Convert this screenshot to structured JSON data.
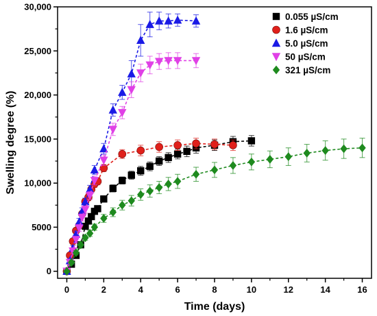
{
  "chart_data": {
    "type": "scatter",
    "title": "",
    "xlabel": "Time (days)",
    "ylabel": "Swelling degree (%)",
    "xlim": [
      -0.5,
      16.5
    ],
    "ylim": [
      -800,
      30000
    ],
    "x_ticks": [
      0,
      2,
      4,
      6,
      8,
      10,
      12,
      14,
      16
    ],
    "y_ticks": [
      0,
      5000,
      10000,
      15000,
      20000,
      25000,
      30000
    ],
    "y_tick_labels": [
      "0",
      "5000",
      "10,000",
      "15,000",
      "20,000",
      "25,000",
      "30,000"
    ],
    "grid": false,
    "legend_position": "top-right",
    "line_style": "dashed",
    "series": [
      {
        "name": "0.055 µS/cm",
        "marker": "square",
        "color": "#000000",
        "x": [
          0,
          0.25,
          0.5,
          0.75,
          1,
          1.17,
          1.33,
          1.5,
          1.67,
          2,
          2.5,
          3,
          3.5,
          4,
          4.5,
          5,
          5.5,
          6,
          6.5,
          7,
          8,
          9,
          10
        ],
        "y": [
          0,
          800,
          1800,
          3000,
          5100,
          5700,
          6200,
          6800,
          7100,
          8200,
          9400,
          10300,
          10900,
          11400,
          11900,
          12500,
          12900,
          13300,
          13600,
          14000,
          14300,
          14700,
          14800
        ],
        "error": [
          150,
          200,
          250,
          300,
          300,
          300,
          300,
          300,
          300,
          350,
          400,
          400,
          450,
          500,
          500,
          500,
          550,
          550,
          600,
          600,
          600,
          600,
          600
        ]
      },
      {
        "name": "1.6 µS/cm",
        "marker": "circle",
        "color": "#e0201b",
        "x": [
          0,
          0.17,
          0.33,
          0.5,
          0.67,
          0.83,
          1,
          1.17,
          1.33,
          1.5,
          1.67,
          2,
          3,
          4,
          5,
          6,
          7,
          8,
          9
        ],
        "y": [
          0,
          1800,
          3400,
          4600,
          5200,
          6500,
          7900,
          8400,
          9300,
          9900,
          10200,
          11700,
          13300,
          13700,
          14100,
          14300,
          14500,
          14400,
          14300
        ],
        "error": [
          150,
          250,
          300,
          300,
          300,
          350,
          350,
          400,
          400,
          400,
          400,
          400,
          500,
          600,
          600,
          600,
          600,
          600,
          600
        ]
      },
      {
        "name": "5.0 µS/cm",
        "marker": "triangle-up",
        "color": "#1a1ae6",
        "x": [
          0,
          0.17,
          0.33,
          0.5,
          0.67,
          0.83,
          1,
          1.25,
          1.5,
          2,
          2.5,
          3,
          3.5,
          4,
          4.5,
          5,
          5.5,
          6,
          7
        ],
        "y": [
          0,
          1200,
          2600,
          4200,
          5600,
          6800,
          7900,
          9300,
          11500,
          13900,
          18300,
          20300,
          22400,
          26200,
          28000,
          28400,
          28400,
          28500,
          28400
        ],
        "error": [
          150,
          250,
          300,
          350,
          400,
          400,
          400,
          450,
          500,
          600,
          700,
          800,
          1500,
          1800,
          1400,
          1000,
          800,
          700,
          700
        ]
      },
      {
        "name": "50 µS/cm",
        "marker": "triangle-down",
        "color": "#e040e6",
        "x": [
          0,
          0.17,
          0.33,
          0.5,
          0.67,
          0.83,
          1,
          1.25,
          1.5,
          2,
          2.5,
          3,
          3.5,
          4,
          4.5,
          5,
          5.5,
          6,
          7
        ],
        "y": [
          0,
          1000,
          2300,
          3600,
          4900,
          6100,
          7000,
          8600,
          10300,
          12600,
          16100,
          18000,
          20600,
          22500,
          23400,
          23800,
          23900,
          23900,
          23900
        ],
        "error": [
          150,
          250,
          300,
          350,
          400,
          400,
          400,
          450,
          500,
          600,
          700,
          700,
          900,
          1000,
          1000,
          900,
          900,
          900,
          800
        ]
      },
      {
        "name": "321 µS/cm",
        "marker": "diamond",
        "color": "#1e8a1e",
        "x": [
          0,
          0.25,
          0.5,
          0.75,
          1,
          1.25,
          1.5,
          2,
          2.5,
          3,
          3.5,
          4,
          4.5,
          5,
          5.5,
          6,
          7,
          8,
          9,
          10,
          11,
          12,
          13,
          14,
          15,
          16
        ],
        "y": [
          0,
          1000,
          2100,
          3000,
          3800,
          4300,
          5000,
          6000,
          6700,
          7500,
          8000,
          8700,
          9100,
          9500,
          9900,
          10200,
          11000,
          11500,
          12000,
          12400,
          12700,
          13000,
          13400,
          13700,
          13900,
          14000
        ],
        "error": [
          150,
          200,
          250,
          300,
          300,
          350,
          350,
          450,
          500,
          550,
          600,
          650,
          700,
          700,
          750,
          800,
          800,
          850,
          900,
          900,
          950,
          1000,
          1000,
          1100,
          1100,
          1100
        ]
      }
    ]
  }
}
